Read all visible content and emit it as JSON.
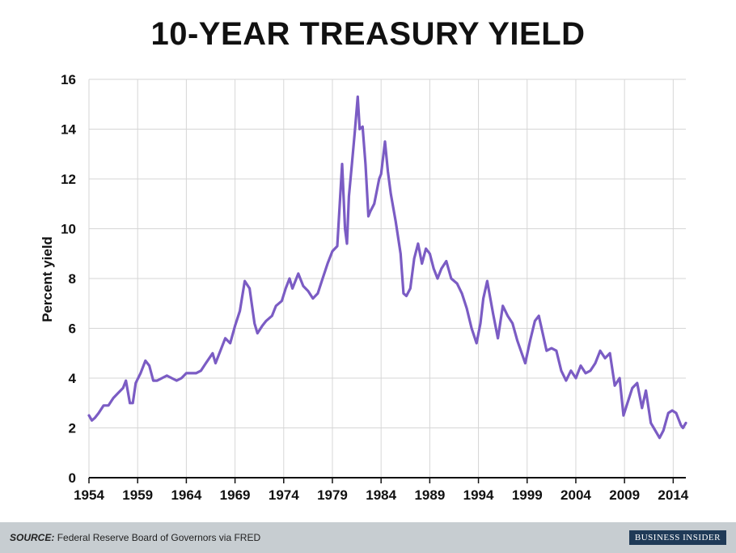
{
  "title": "10-YEAR TREASURY YIELD",
  "footer": {
    "source_label": "SOURCE:",
    "source_text": "Federal Reserve Board of Governors via FRED",
    "brand": "BUSINESS INSIDER"
  },
  "chart_data": {
    "type": "line",
    "title": "10-YEAR TREASURY YIELD",
    "xlabel": "",
    "ylabel": "Percent yield",
    "xlim": [
      1954,
      2015.3
    ],
    "ylim": [
      0,
      16
    ],
    "xticks": [
      1954,
      1959,
      1964,
      1969,
      1974,
      1979,
      1984,
      1989,
      1994,
      1999,
      2004,
      2009,
      2014
    ],
    "yticks": [
      0,
      2,
      4,
      6,
      8,
      10,
      12,
      14,
      16
    ],
    "grid": true,
    "color": "#7b5cc4",
    "series": [
      {
        "x": [
          1954.0,
          1954.3,
          1954.6,
          1955.0,
          1955.5,
          1956.0,
          1956.5,
          1957.0,
          1957.5,
          1957.8,
          1958.2,
          1958.5,
          1958.8,
          1959.3,
          1959.8,
          1960.2,
          1960.6,
          1961.0,
          1961.5,
          1962.0,
          1962.5,
          1963.0,
          1963.5,
          1964.0,
          1964.5,
          1965.0,
          1965.5,
          1966.0,
          1966.7,
          1967.0,
          1967.5,
          1968.0,
          1968.5,
          1969.0,
          1969.5,
          1970.0,
          1970.5,
          1971.0,
          1971.3,
          1971.8,
          1972.2,
          1972.8,
          1973.2,
          1973.8,
          1974.2,
          1974.6,
          1974.9,
          1975.5,
          1976.0,
          1976.5,
          1977.0,
          1977.5,
          1978.0,
          1978.5,
          1979.0,
          1979.5,
          1980.0,
          1980.3,
          1980.5,
          1980.7,
          1981.0,
          1981.3,
          1981.6,
          1981.8,
          1982.1,
          1982.4,
          1982.7,
          1982.9,
          1983.3,
          1983.8,
          1984.0,
          1984.4,
          1984.7,
          1985.0,
          1985.5,
          1986.0,
          1986.3,
          1986.6,
          1987.0,
          1987.4,
          1987.8,
          1988.2,
          1988.6,
          1989.0,
          1989.4,
          1989.8,
          1990.2,
          1990.7,
          1991.2,
          1991.8,
          1992.3,
          1992.8,
          1993.3,
          1993.8,
          1994.2,
          1994.5,
          1994.9,
          1995.5,
          1996.0,
          1996.5,
          1997.0,
          1997.5,
          1998.0,
          1998.8,
          1999.3,
          1999.8,
          2000.2,
          2000.6,
          2001.0,
          2001.5,
          2002.0,
          2002.5,
          2003.0,
          2003.5,
          2004.0,
          2004.5,
          2005.0,
          2005.5,
          2006.0,
          2006.5,
          2007.0,
          2007.5,
          2008.0,
          2008.5,
          2008.9,
          2009.3,
          2009.8,
          2010.3,
          2010.8,
          2011.2,
          2011.7,
          2012.0,
          2012.6,
          2013.0,
          2013.5,
          2013.9,
          2014.3,
          2014.8,
          2015.0,
          2015.3
        ],
        "values": [
          2.5,
          2.3,
          2.4,
          2.6,
          2.9,
          2.9,
          3.2,
          3.4,
          3.6,
          3.9,
          3.0,
          3.0,
          3.8,
          4.2,
          4.7,
          4.5,
          3.9,
          3.9,
          4.0,
          4.1,
          4.0,
          3.9,
          4.0,
          4.2,
          4.2,
          4.2,
          4.3,
          4.6,
          5.0,
          4.6,
          5.1,
          5.6,
          5.4,
          6.1,
          6.7,
          7.9,
          7.6,
          6.2,
          5.8,
          6.1,
          6.3,
          6.5,
          6.9,
          7.1,
          7.6,
          8.0,
          7.6,
          8.2,
          7.7,
          7.5,
          7.2,
          7.4,
          8.0,
          8.6,
          9.1,
          9.3,
          12.6,
          10.0,
          9.4,
          11.3,
          12.6,
          13.9,
          15.3,
          14.0,
          14.1,
          12.6,
          10.5,
          10.7,
          11.0,
          12.0,
          12.2,
          13.5,
          12.3,
          11.4,
          10.3,
          9.0,
          7.4,
          7.3,
          7.6,
          8.8,
          9.4,
          8.6,
          9.2,
          9.0,
          8.4,
          8.0,
          8.4,
          8.7,
          8.0,
          7.8,
          7.4,
          6.8,
          6.0,
          5.4,
          6.2,
          7.2,
          7.9,
          6.6,
          5.6,
          6.9,
          6.5,
          6.2,
          5.5,
          4.6,
          5.5,
          6.3,
          6.5,
          5.8,
          5.1,
          5.2,
          5.1,
          4.3,
          3.9,
          4.3,
          4.0,
          4.5,
          4.2,
          4.3,
          4.6,
          5.1,
          4.8,
          5.0,
          3.7,
          4.0,
          2.5,
          3.0,
          3.6,
          3.8,
          2.8,
          3.5,
          2.2,
          2.0,
          1.6,
          1.9,
          2.6,
          2.7,
          2.6,
          2.1,
          2.0,
          2.2
        ]
      }
    ]
  }
}
